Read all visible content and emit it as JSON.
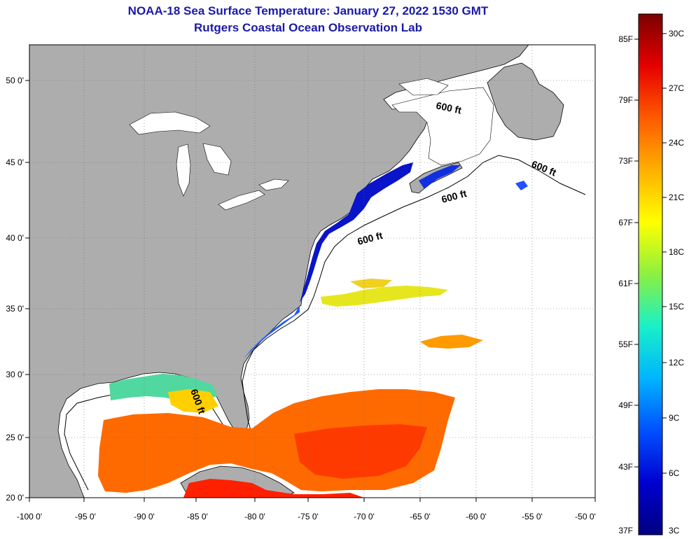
{
  "title": {
    "line1": "NOAA-18 Sea Surface Temperature:  January 27, 2022 1530 GMT",
    "line2": "Rutgers Coastal Ocean Observation Lab"
  },
  "map": {
    "lon_ticks": [
      "-100 0'",
      "-95 0'",
      "-90 0'",
      "-85 0'",
      "-80 0'",
      "-75 0'",
      "-70 0'",
      "-65 0'",
      "-60 0'",
      "-55 0'",
      "-50 0'"
    ],
    "lat_ticks": [
      "20 0'",
      "25 0'",
      "30 0'",
      "35 0'",
      "40 0'",
      "45 0'",
      "50 0'"
    ],
    "contour_labels": [
      "600 ft",
      "600 ft",
      "600 ft",
      "600 ft",
      "600 ft"
    ],
    "colors": {
      "land": "#adadad",
      "ocean_no_data": "#ffffff"
    }
  },
  "colorbar": {
    "f_labels": [
      "85F",
      "79F",
      "73F",
      "67F",
      "61F",
      "55F",
      "49F",
      "43F",
      "37F"
    ],
    "c_labels": [
      "30C",
      "27C",
      "24C",
      "21C",
      "18C",
      "15C",
      "12C",
      "9C",
      "6C",
      "3C"
    ],
    "stops": [
      "#7a0000",
      "#e60000",
      "#ff5a00",
      "#ffb000",
      "#ffff00",
      "#8cf040",
      "#19f0c8",
      "#00b4ff",
      "#0050ff",
      "#0000d0",
      "#000080"
    ]
  }
}
